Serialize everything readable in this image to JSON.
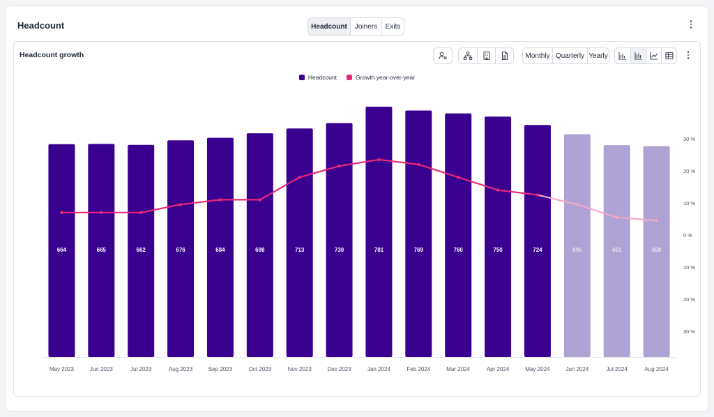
{
  "page": {
    "title": "Headcount"
  },
  "tabs": [
    "Headcount",
    "Joiners",
    "Exits"
  ],
  "card": {
    "title": "Headcount growth",
    "icons": [
      "person-settings-icon",
      "org-chart-icon",
      "building-icon",
      "document-icon"
    ],
    "periods": [
      "Monthly",
      "Quarterly",
      "Yearly"
    ],
    "chart_type_icons": [
      "bar-chart-icon",
      "stacked-bar-chart-icon",
      "line-chart-icon",
      "table-icon"
    ]
  },
  "colors": {
    "bar": "#3a0090",
    "bar_forecast": "#afa3d5",
    "line": "#e8277a",
    "line_forecast": "#f2a8c8"
  },
  "chart_data": {
    "type": "bar",
    "categories": [
      "May 2023",
      "Jun 2023",
      "Jul 2023",
      "Aug 2023",
      "Sep 2023",
      "Oct 2023",
      "Nov 2023",
      "Dec 2023",
      "Jan 2024",
      "Feb 2024",
      "Mar 2024",
      "Apr 2024",
      "May 2024",
      "Jun 2024",
      "Jul 2024",
      "Aug 2024"
    ],
    "series": [
      {
        "name": "Headcount",
        "type": "bar",
        "values": [
          664,
          665,
          662,
          676,
          684,
          698,
          713,
          730,
          781,
          769,
          760,
          750,
          724,
          695,
          661,
          658
        ]
      },
      {
        "name": "Growth year-over-year",
        "type": "line",
        "axis": "right",
        "unit": "%",
        "values": [
          7,
          7,
          7,
          9.5,
          11,
          11,
          18,
          21.5,
          23.5,
          22,
          18,
          14,
          12.5,
          9.5,
          5.5,
          4.5
        ]
      }
    ],
    "forecast_from_index": 13,
    "bar_labels": [
      "664",
      "665",
      "662",
      "676",
      "684",
      "698",
      "713",
      "730",
      "781",
      "769",
      "760",
      "750",
      "724",
      "695",
      "661",
      "658"
    ],
    "y2_ticks": [
      "30 %",
      "20 %",
      "10 %",
      "0 %",
      "10 %",
      "20 %",
      "30 %"
    ],
    "y2lim": [
      -30,
      30
    ],
    "ylim": [
      0,
      781
    ],
    "legend_position": "top-center",
    "grid": false
  }
}
